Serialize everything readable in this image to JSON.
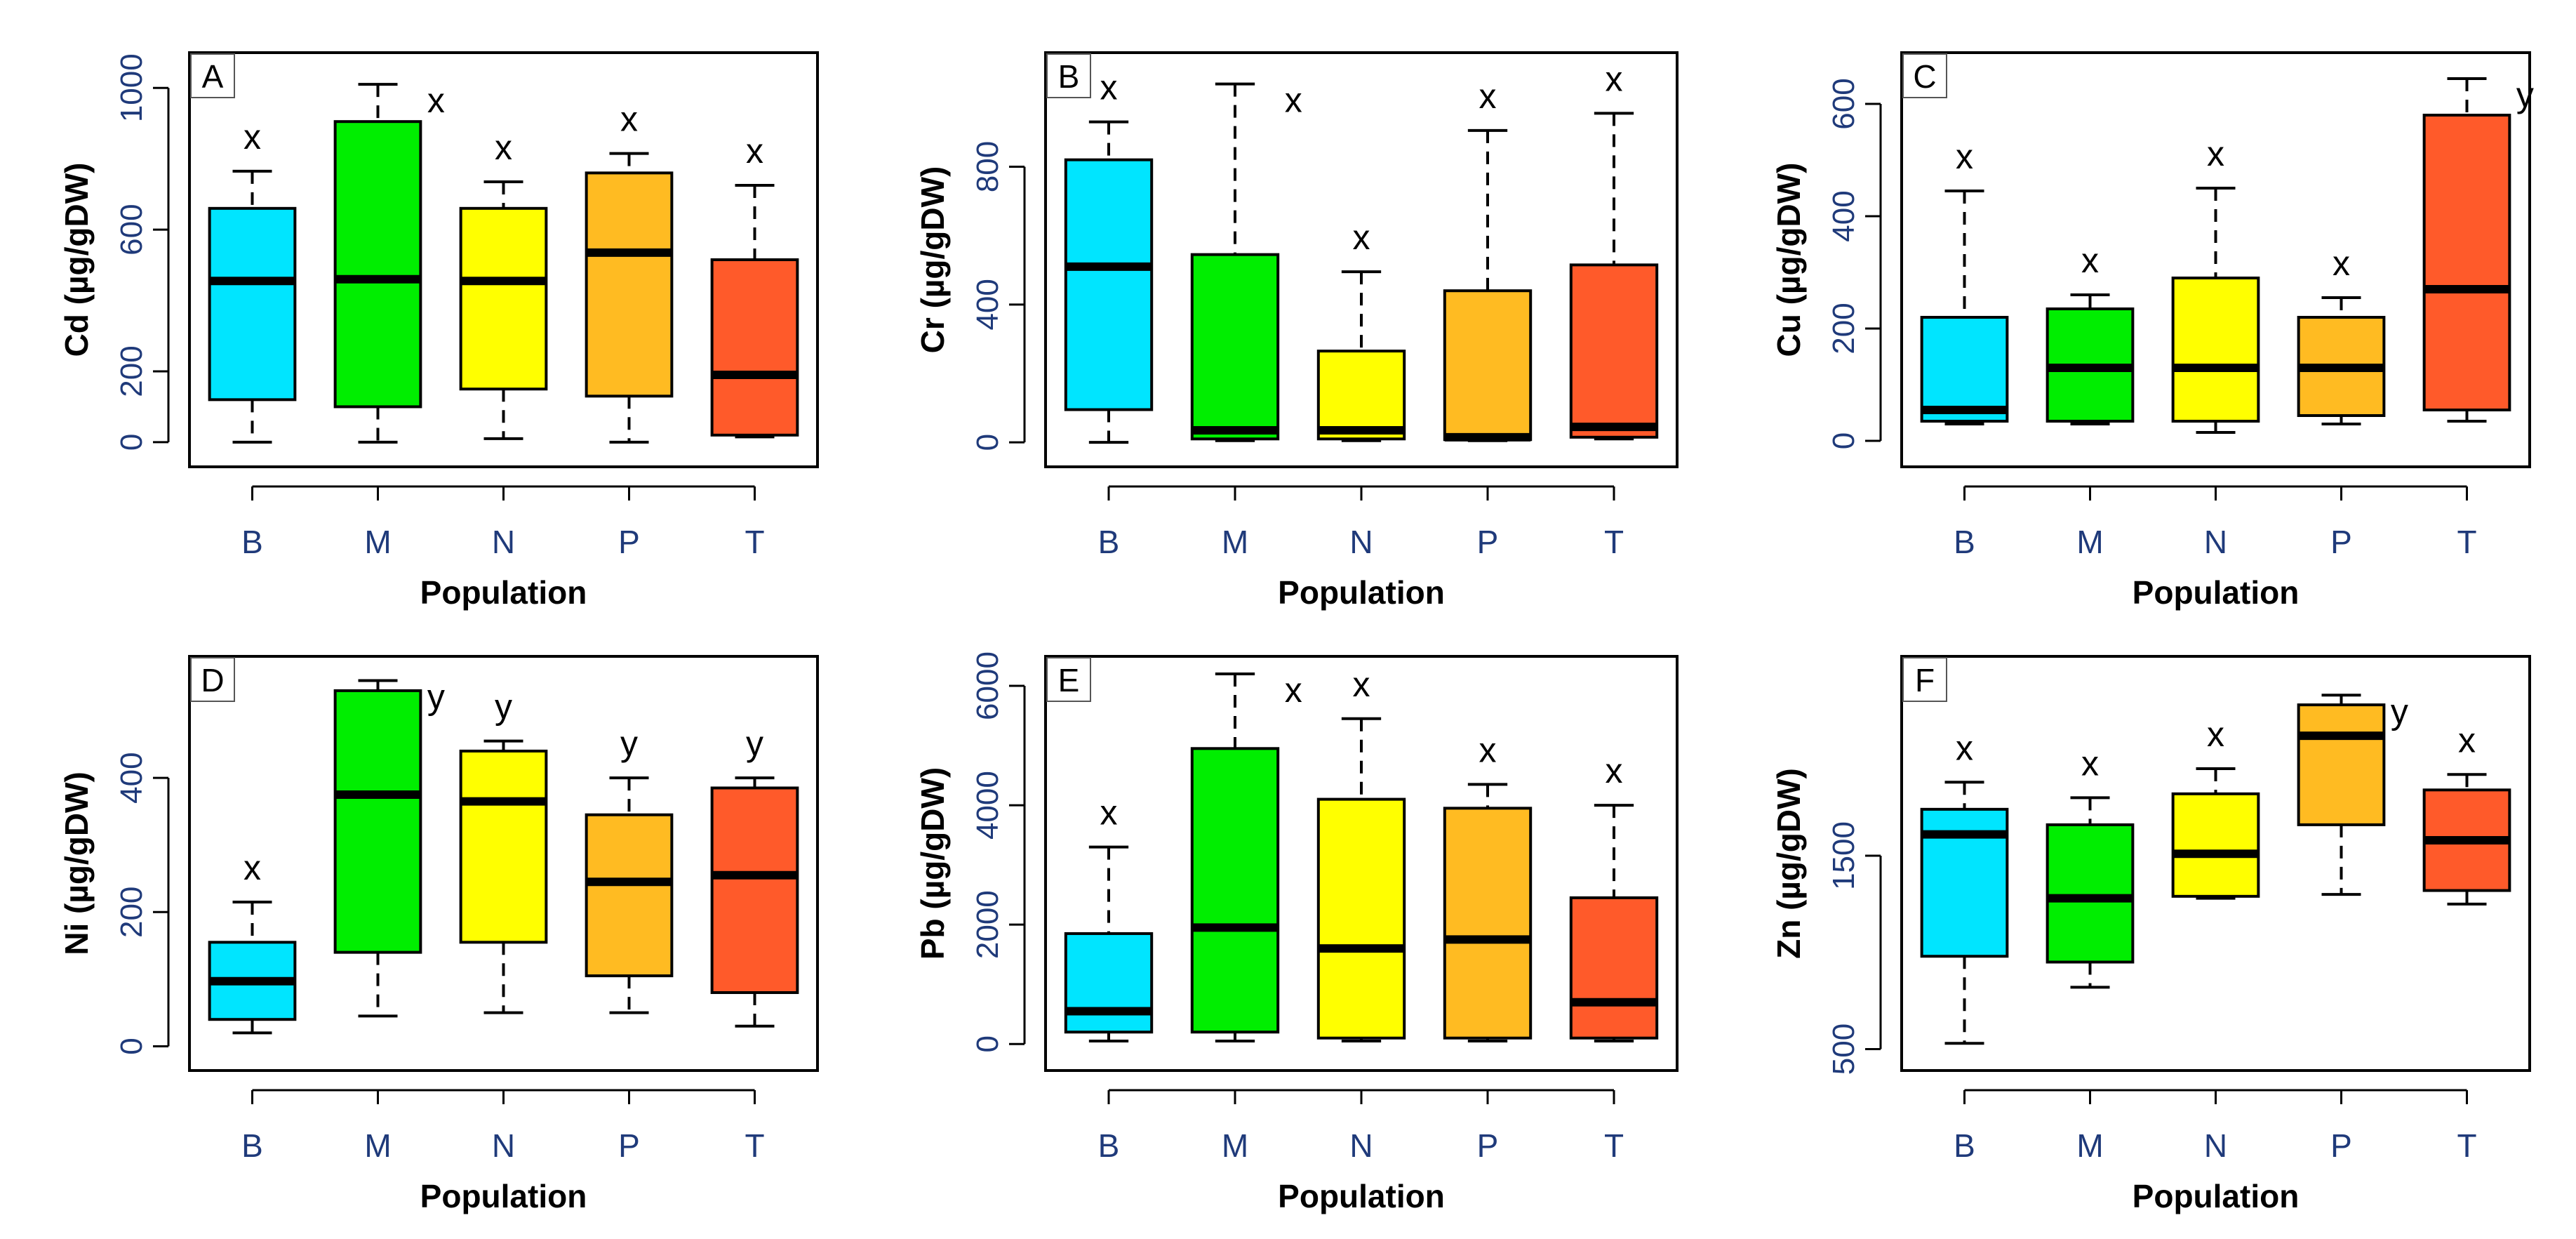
{
  "chart_data": [
    {
      "panel": "A",
      "type": "boxplot",
      "ylabel": "Cd  (µg/gDW)",
      "xlabel": "Population",
      "ylim": [
        -20,
        1050
      ],
      "yticks": [
        0,
        200,
        600,
        1000
      ],
      "categories": [
        "B",
        "M",
        "N",
        "P",
        "T"
      ],
      "colors": [
        "#00e5ff",
        "#00ee00",
        "#ffff00",
        "#ffbb22",
        "#ff5a2a"
      ],
      "boxes": [
        {
          "min": 0,
          "q1": 120,
          "median": 455,
          "q3": 660,
          "max": 765
        },
        {
          "min": 0,
          "q1": 100,
          "median": 460,
          "q3": 905,
          "max": 1010
        },
        {
          "min": 10,
          "q1": 150,
          "median": 455,
          "q3": 660,
          "max": 735
        },
        {
          "min": 0,
          "q1": 130,
          "median": 535,
          "q3": 760,
          "max": 815
        },
        {
          "min": 15,
          "q1": 20,
          "median": 190,
          "q3": 515,
          "max": 725
        }
      ],
      "sig_letters": [
        "x",
        "x",
        "x",
        "x",
        "x"
      ]
    },
    {
      "panel": "B",
      "type": "boxplot",
      "ylabel": "Cr  (µg/gDW)",
      "xlabel": "Population",
      "ylim": [
        -20,
        1080
      ],
      "yticks": [
        0,
        400,
        800
      ],
      "categories": [
        "B",
        "M",
        "N",
        "P",
        "T"
      ],
      "colors": [
        "#00e5ff",
        "#00ee00",
        "#ffff00",
        "#ffbb22",
        "#ff5a2a"
      ],
      "boxes": [
        {
          "min": 0,
          "q1": 95,
          "median": 510,
          "q3": 820,
          "max": 930
        },
        {
          "min": 5,
          "q1": 10,
          "median": 35,
          "q3": 545,
          "max": 1040
        },
        {
          "min": 5,
          "q1": 10,
          "median": 35,
          "q3": 265,
          "max": 495
        },
        {
          "min": 5,
          "q1": 8,
          "median": 15,
          "q3": 440,
          "max": 905
        },
        {
          "min": 10,
          "q1": 15,
          "median": 45,
          "q3": 515,
          "max": 955
        }
      ],
      "sig_letters": [
        "x",
        "x",
        "x",
        "x",
        "x"
      ]
    },
    {
      "panel": "C",
      "type": "boxplot",
      "ylabel": "Cu  (µg/gDW)",
      "xlabel": "Population",
      "ylim": [
        -15,
        660
      ],
      "yticks": [
        0,
        200,
        400,
        600
      ],
      "categories": [
        "B",
        "M",
        "N",
        "P",
        "T"
      ],
      "colors": [
        "#00e5ff",
        "#00ee00",
        "#ffff00",
        "#ffbb22",
        "#ff5a2a"
      ],
      "boxes": [
        {
          "min": 30,
          "q1": 35,
          "median": 55,
          "q3": 220,
          "max": 445
        },
        {
          "min": 30,
          "q1": 35,
          "median": 130,
          "q3": 235,
          "max": 260
        },
        {
          "min": 15,
          "q1": 35,
          "median": 130,
          "q3": 290,
          "max": 450
        },
        {
          "min": 30,
          "q1": 45,
          "median": 130,
          "q3": 220,
          "max": 255
        },
        {
          "min": 35,
          "q1": 55,
          "median": 270,
          "q3": 580,
          "max": 645
        }
      ],
      "sig_letters": [
        "x",
        "x",
        "x",
        "x",
        "y"
      ]
    },
    {
      "panel": "D",
      "type": "boxplot",
      "ylabel": "Ni  (µg/gDW)",
      "xlabel": "Population",
      "ylim": [
        -10,
        555
      ],
      "yticks": [
        0,
        200,
        400
      ],
      "categories": [
        "B",
        "M",
        "N",
        "P",
        "T"
      ],
      "colors": [
        "#00e5ff",
        "#00ee00",
        "#ffff00",
        "#ffbb22",
        "#ff5a2a"
      ],
      "boxes": [
        {
          "min": 20,
          "q1": 40,
          "median": 97,
          "q3": 155,
          "max": 215
        },
        {
          "min": 45,
          "q1": 140,
          "median": 375,
          "q3": 530,
          "max": 545
        },
        {
          "min": 50,
          "q1": 155,
          "median": 365,
          "q3": 440,
          "max": 455
        },
        {
          "min": 50,
          "q1": 105,
          "median": 245,
          "q3": 345,
          "max": 400
        },
        {
          "min": 30,
          "q1": 80,
          "median": 255,
          "q3": 385,
          "max": 400
        }
      ],
      "sig_letters": [
        "x",
        "y",
        "y",
        "y",
        "y"
      ]
    },
    {
      "panel": "E",
      "type": "boxplot",
      "ylabel": "Pb  (µg/gDW)",
      "xlabel": "Population",
      "ylim": [
        -150,
        6200
      ],
      "yticks": [
        0,
        2000,
        4000,
        6000
      ],
      "categories": [
        "B",
        "M",
        "N",
        "P",
        "T"
      ],
      "colors": [
        "#00e5ff",
        "#00ee00",
        "#ffff00",
        "#ffbb22",
        "#ff5a2a"
      ],
      "boxes": [
        {
          "min": 50,
          "q1": 200,
          "median": 550,
          "q3": 1850,
          "max": 3300
        },
        {
          "min": 50,
          "q1": 200,
          "median": 1950,
          "q3": 4950,
          "max": 6200
        },
        {
          "min": 50,
          "q1": 100,
          "median": 1600,
          "q3": 4100,
          "max": 5450
        },
        {
          "min": 50,
          "q1": 100,
          "median": 1750,
          "q3": 3950,
          "max": 4350
        },
        {
          "min": 50,
          "q1": 100,
          "median": 700,
          "q3": 2450,
          "max": 4000
        }
      ],
      "sig_letters": [
        "x",
        "x",
        "x",
        "x",
        "x"
      ]
    },
    {
      "panel": "F",
      "type": "boxplot",
      "ylabel": "Zn  (µg/gDW)",
      "xlabel": "Population",
      "ylim": [
        480,
        2440
      ],
      "yticks": [
        500,
        1500
      ],
      "categories": [
        "B",
        "M",
        "N",
        "P",
        "T"
      ],
      "colors": [
        "#00e5ff",
        "#00ee00",
        "#ffff00",
        "#ffbb22",
        "#ff5a2a"
      ],
      "boxes": [
        {
          "min": 530,
          "q1": 980,
          "median": 1610,
          "q3": 1740,
          "max": 1880
        },
        {
          "min": 820,
          "q1": 950,
          "median": 1280,
          "q3": 1660,
          "max": 1800
        },
        {
          "min": 1280,
          "q1": 1290,
          "median": 1510,
          "q3": 1820,
          "max": 1950
        },
        {
          "min": 1300,
          "q1": 1660,
          "median": 2120,
          "q3": 2280,
          "max": 2330
        },
        {
          "min": 1250,
          "q1": 1320,
          "median": 1580,
          "q3": 1840,
          "max": 1920
        }
      ],
      "sig_letters": [
        "x",
        "x",
        "x",
        "y",
        "x"
      ]
    }
  ]
}
